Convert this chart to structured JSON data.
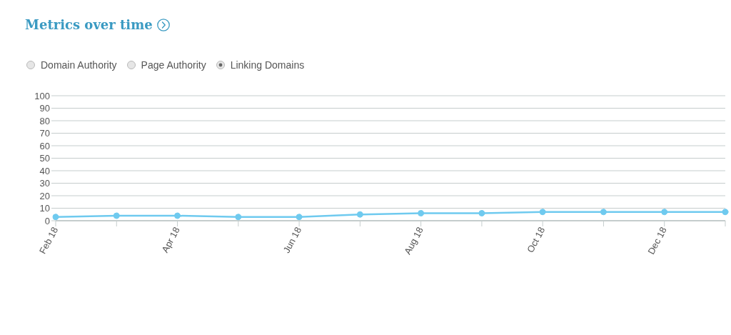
{
  "chart_data": {
    "type": "line",
    "title": "Metrics over time",
    "annotations": [
      "Domain Authority",
      "Page Authority"
    ],
    "categories": [
      "Feb 18",
      null,
      "Apr 18",
      null,
      "Jun 18",
      null,
      "Aug 18",
      null,
      "Oct 18",
      null,
      "Dec 18",
      null
    ],
    "series": [
      {
        "name": "Linking Domains",
        "color": "#6fcaef",
        "values": [
          3,
          4,
          4,
          3,
          3,
          5,
          6,
          6,
          7,
          7,
          7,
          7
        ]
      }
    ],
    "ylim": [
      0,
      100
    ],
    "yticks": [
      0,
      10,
      20,
      30,
      40,
      50,
      60,
      70,
      80,
      90,
      100
    ],
    "grid": "y",
    "legend": "top left",
    "marker": "circle",
    "line_style": "solid"
  }
}
